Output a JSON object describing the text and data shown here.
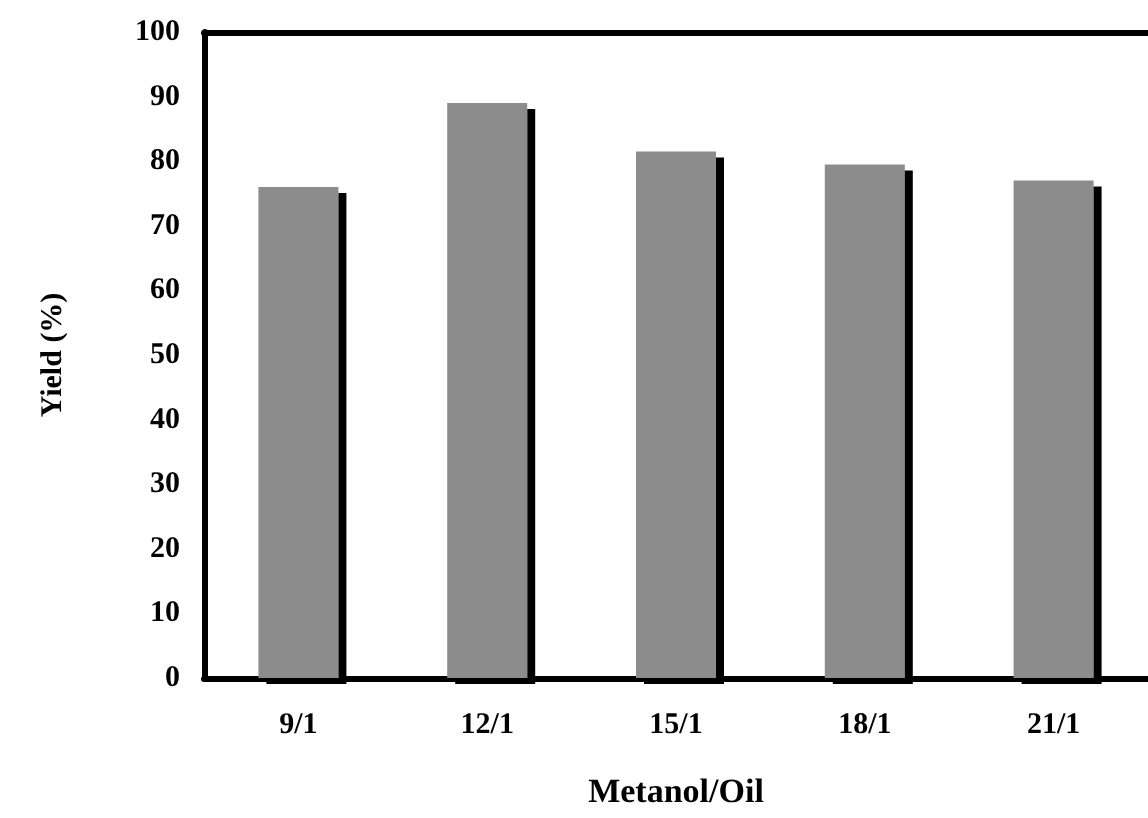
{
  "chart_data": {
    "type": "bar",
    "xlabel": "Metanol/Oil",
    "ylabel": "Yield (%)",
    "categories": [
      "9/1",
      "12/1",
      "15/1",
      "18/1",
      "21/1"
    ],
    "values": [
      76,
      89,
      81.5,
      79.5,
      77
    ],
    "color": "#8c8c8c",
    "ylim": [
      0,
      100
    ],
    "yticks": [
      0,
      10,
      20,
      30,
      40,
      50,
      60,
      70,
      80,
      90,
      100
    ],
    "grid": false
  }
}
